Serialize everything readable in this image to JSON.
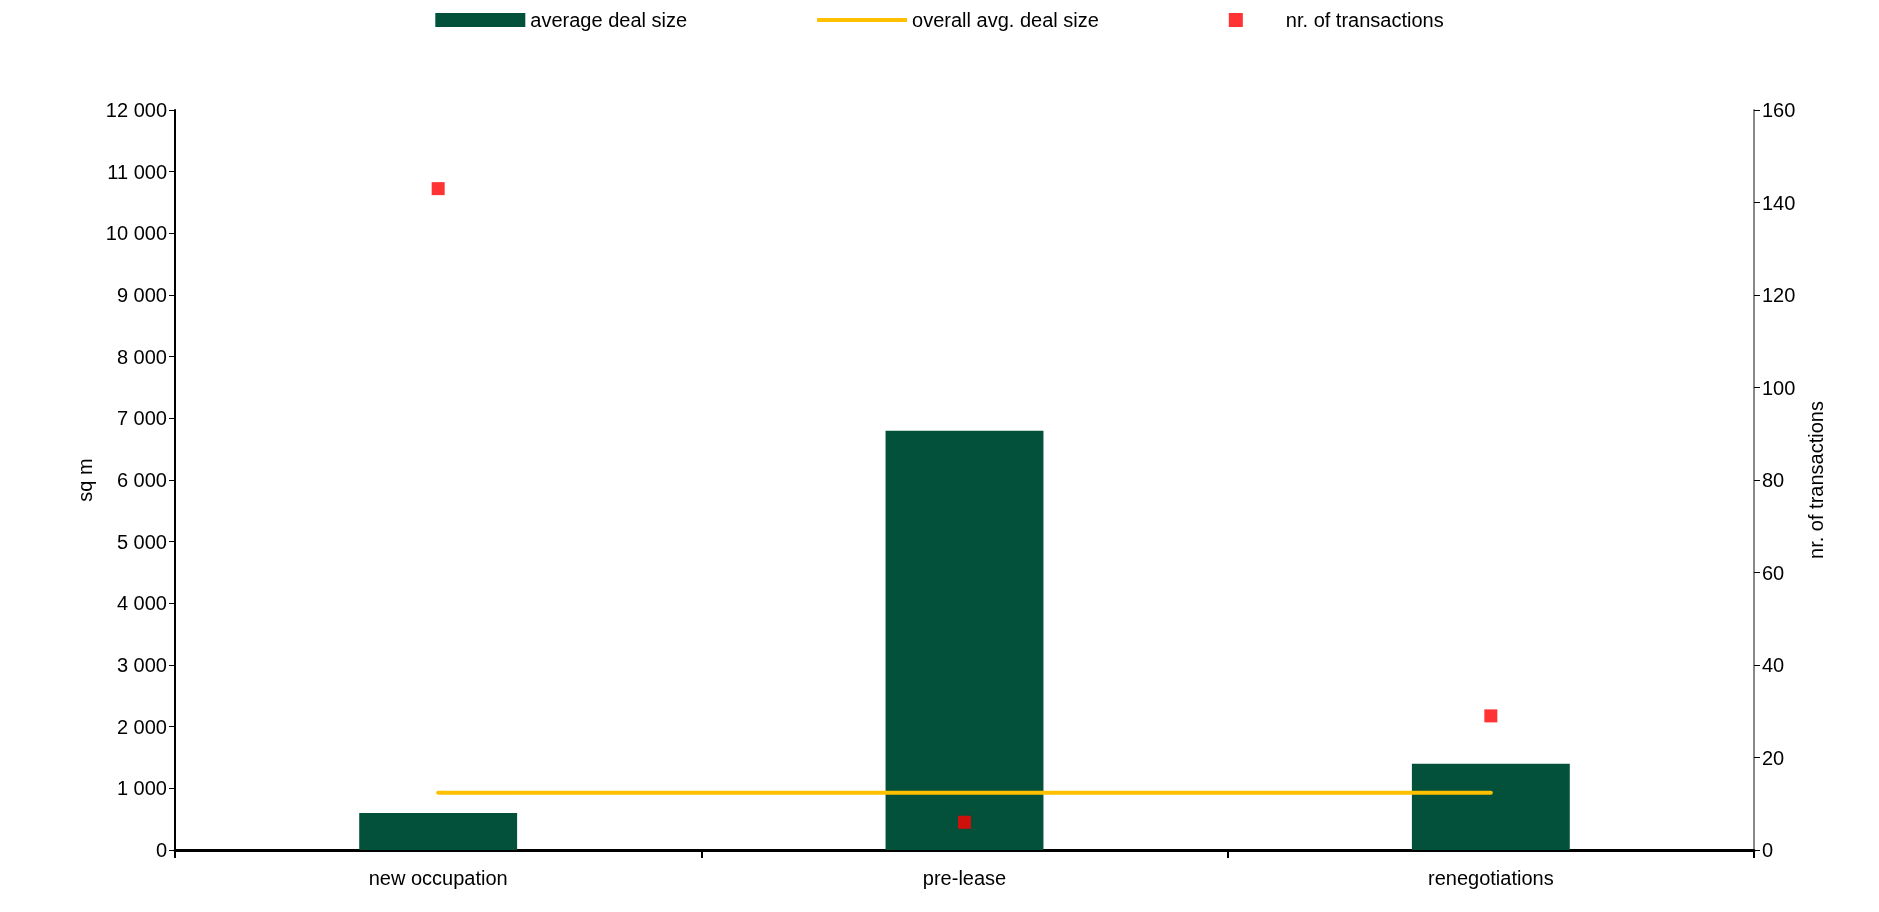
{
  "chart_data": {
    "type": "bar",
    "categories": [
      "new occupation",
      "pre-lease",
      "renegotiations"
    ],
    "series": [
      {
        "name": "average deal size",
        "color": "#03513a",
        "values": [
          600,
          6800,
          1400
        ]
      },
      {
        "name": "overall avg. deal size",
        "type": "line",
        "color": "#ffc000",
        "marker": "none",
        "values": [
          930,
          930,
          930
        ]
      },
      {
        "name": "nr. of transactions",
        "type": "scatter",
        "color": "#ff0000",
        "marker": "square",
        "axis": "y2",
        "values": [
          143,
          6,
          29
        ]
      }
    ],
    "ylabel": "sq m",
    "y2label": "nr. of transactions",
    "ylim": [
      0,
      12000
    ],
    "yticks": [
      0,
      {
        "value": 1000,
        "label": "1 000"
      },
      {
        "value": 2000,
        "label": "2 000"
      },
      {
        "value": 3000,
        "label": "3 000"
      },
      {
        "value": 4000,
        "label": "4 000"
      },
      {
        "value": 5000,
        "label": "5 000"
      },
      {
        "value": 6000,
        "label": "6 000"
      },
      {
        "value": 7000,
        "label": "7 000"
      },
      {
        "value": 8000,
        "label": "8 000"
      },
      {
        "value": 9000,
        "label": "9 000"
      },
      {
        "value": 10000,
        "label": "10 000"
      },
      {
        "value": 11000,
        "label": "11 000"
      },
      {
        "value": 12000,
        "label": "12 000"
      }
    ],
    "y2lim": [
      0,
      160
    ],
    "y2ticks": [
      0,
      20,
      40,
      60,
      80,
      100,
      120,
      140,
      160
    ],
    "grid": false,
    "legend": "top"
  }
}
